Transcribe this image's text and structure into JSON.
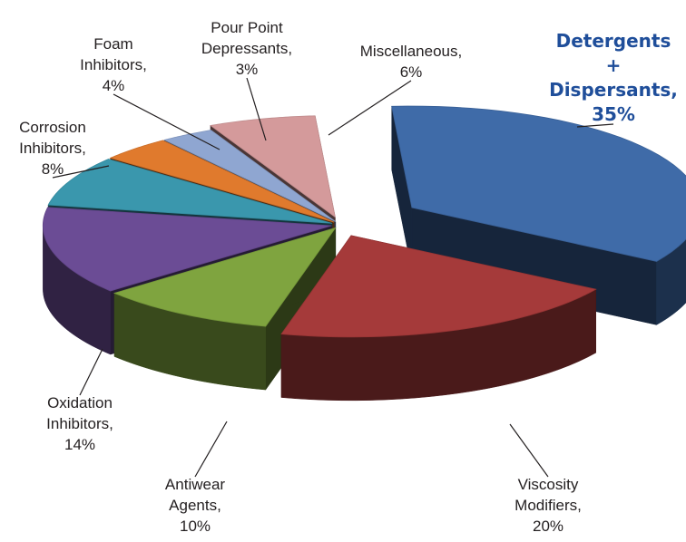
{
  "chart_data": {
    "type": "pie",
    "style": "3d-exploded",
    "title": "",
    "slices": [
      {
        "name": "Detergents + Dispersants",
        "value": 35,
        "color": "#3f6ba8",
        "label_lines": [
          "Detergents",
          "+",
          "Dispersants,",
          "35%"
        ],
        "highlight": true
      },
      {
        "name": "Viscosity Modifiers",
        "value": 20,
        "color": "#a53a3a",
        "label_lines": [
          "Viscosity",
          "Modifiers,",
          "20%"
        ]
      },
      {
        "name": "Antiwear Agents",
        "value": 10,
        "color": "#7fa43f",
        "label_lines": [
          "Antiwear",
          "Agents,",
          "10%"
        ]
      },
      {
        "name": "Oxidation Inhibitors",
        "value": 14,
        "color": "#6b4c95",
        "label_lines": [
          "Oxidation",
          "Inhibitors,",
          "14%"
        ]
      },
      {
        "name": "Corrosion Inhibitors",
        "value": 8,
        "color": "#3a97ad",
        "label_lines": [
          "Corrosion",
          "Inhibitors,",
          "8%"
        ]
      },
      {
        "name": "Foam Inhibitors",
        "value": 4,
        "color": "#e07a2d",
        "label_lines": [
          "Foam",
          "Inhibitors,",
          "4%"
        ]
      },
      {
        "name": "Pour Point Depressants",
        "value": 3,
        "color": "#8fa6d1",
        "label_lines": [
          "Pour Point",
          "Depressants,",
          "3%"
        ]
      },
      {
        "name": "Miscellaneous",
        "value": 6,
        "color": "#d49a9b",
        "label_lines": [
          "Miscellaneous,",
          "6%"
        ]
      }
    ]
  }
}
